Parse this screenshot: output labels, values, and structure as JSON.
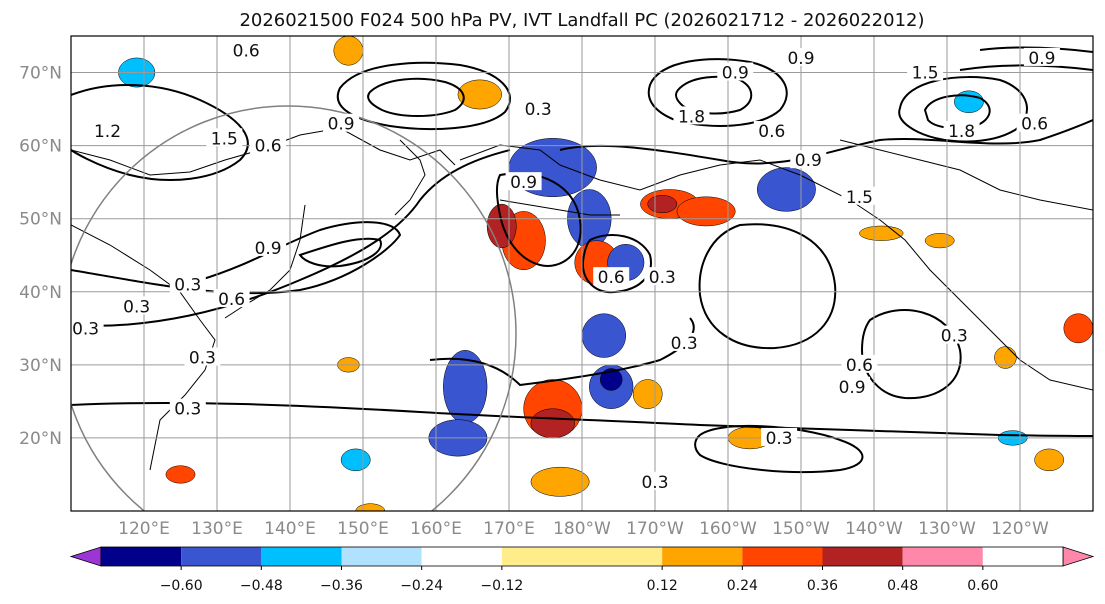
{
  "title": "2026021500 F024 500 hPa PV, IVT Landfall PC (2026021712 - 2026022012)",
  "map": {
    "lon_range": [
      110,
      250
    ],
    "lat_range": [
      10,
      75
    ],
    "lat_ticks": [
      {
        "value": 20,
        "label": "20°N"
      },
      {
        "value": 30,
        "label": "30°N"
      },
      {
        "value": 40,
        "label": "40°N"
      },
      {
        "value": 50,
        "label": "50°N"
      },
      {
        "value": 60,
        "label": "60°N"
      },
      {
        "value": 70,
        "label": "70°N"
      }
    ],
    "lon_ticks": [
      {
        "value": 120,
        "label": "120°E"
      },
      {
        "value": 130,
        "label": "130°E"
      },
      {
        "value": 140,
        "label": "140°E"
      },
      {
        "value": 150,
        "label": "150°E"
      },
      {
        "value": 160,
        "label": "160°E"
      },
      {
        "value": 170,
        "label": "170°E"
      },
      {
        "value": 180,
        "label": "180°W"
      },
      {
        "value": 190,
        "label": "170°W"
      },
      {
        "value": 200,
        "label": "160°W"
      },
      {
        "value": 210,
        "label": "150°W"
      },
      {
        "value": 220,
        "label": "140°W"
      },
      {
        "value": 230,
        "label": "130°W"
      },
      {
        "value": 240,
        "label": "120°W"
      }
    ],
    "gridlines": true
  },
  "colorbar": {
    "levels": [
      -0.72,
      -0.6,
      -0.48,
      -0.36,
      -0.24,
      -0.12,
      0.12,
      0.24,
      0.36,
      0.48,
      0.6,
      0.72
    ],
    "tick_values": [
      -0.6,
      -0.48,
      -0.36,
      -0.24,
      -0.12,
      0.12,
      0.24,
      0.36,
      0.48,
      0.6
    ],
    "tick_labels": [
      "−0.60",
      "−0.48",
      "−0.36",
      "−0.24",
      "−0.12",
      "0.12",
      "0.24",
      "0.36",
      "0.48",
      "0.60"
    ],
    "colors": [
      "#9b35d6",
      "#00008b",
      "#3955d0",
      "#00bfff",
      "#b0e2ff",
      "#ffffff",
      "#ffec8b",
      "#ffa500",
      "#ff4500",
      "#b22222",
      "#ff88aa"
    ],
    "extend": "both"
  },
  "contour_labels": [
    {
      "lon": 115,
      "lat": 62,
      "text": "1.2"
    },
    {
      "lon": 119,
      "lat": 38,
      "text": "0.3"
    },
    {
      "lon": 131,
      "lat": 61,
      "text": "1.5"
    },
    {
      "lon": 137,
      "lat": 60,
      "text": "0.6"
    },
    {
      "lon": 137,
      "lat": 46,
      "text": "0.9"
    },
    {
      "lon": 126,
      "lat": 41,
      "text": "0.3"
    },
    {
      "lon": 132,
      "lat": 39,
      "text": "0.6"
    },
    {
      "lon": 112,
      "lat": 35,
      "text": "0.3"
    },
    {
      "lon": 128,
      "lat": 31,
      "text": "0.3"
    },
    {
      "lon": 126,
      "lat": 24,
      "text": "0.3"
    },
    {
      "lon": 134,
      "lat": 73,
      "text": "0.6"
    },
    {
      "lon": 147,
      "lat": 63,
      "text": "0.9"
    },
    {
      "lon": 174,
      "lat": 65,
      "text": "0.3"
    },
    {
      "lon": 172,
      "lat": 55,
      "text": "0.9"
    },
    {
      "lon": 195,
      "lat": 64,
      "text": "1.8"
    },
    {
      "lon": 201,
      "lat": 70,
      "text": "0.9"
    },
    {
      "lon": 206,
      "lat": 62,
      "text": "0.6"
    },
    {
      "lon": 211,
      "lat": 58,
      "text": "0.9"
    },
    {
      "lon": 232,
      "lat": 62,
      "text": "1.8"
    },
    {
      "lon": 210,
      "lat": 72,
      "text": "0.9"
    },
    {
      "lon": 227,
      "lat": 70,
      "text": "1.5"
    },
    {
      "lon": 218,
      "lat": 53,
      "text": "1.5"
    },
    {
      "lon": 242,
      "lat": 63,
      "text": "0.6"
    },
    {
      "lon": 184,
      "lat": 42,
      "text": "0.6"
    },
    {
      "lon": 191,
      "lat": 42,
      "text": "0.3"
    },
    {
      "lon": 194,
      "lat": 33,
      "text": "0.3"
    },
    {
      "lon": 218,
      "lat": 30,
      "text": "0.6"
    },
    {
      "lon": 217,
      "lat": 27,
      "text": "0.9"
    },
    {
      "lon": 231,
      "lat": 34,
      "text": "0.3"
    },
    {
      "lon": 207,
      "lat": 20,
      "text": "0.3"
    },
    {
      "lon": 190,
      "lat": 14,
      "text": "0.3"
    },
    {
      "lon": 243,
      "lat": 72,
      "text": "0.9"
    }
  ],
  "shaded_areas": [
    {
      "lon": 176,
      "lat": 57,
      "rx": 6,
      "ry": 4,
      "color": "#3955d0"
    },
    {
      "lon": 181,
      "lat": 50,
      "rx": 3,
      "ry": 4,
      "color": "#3955d0"
    },
    {
      "lon": 172,
      "lat": 47,
      "rx": 3,
      "ry": 4,
      "color": "#ff4500"
    },
    {
      "lon": 169,
      "lat": 49,
      "rx": 2,
      "ry": 3,
      "color": "#b22222"
    },
    {
      "lon": 182,
      "lat": 44,
      "rx": 3,
      "ry": 3,
      "color": "#ff4500"
    },
    {
      "lon": 186,
      "lat": 44,
      "rx": 2.5,
      "ry": 2.5,
      "color": "#3955d0"
    },
    {
      "lon": 192,
      "lat": 52,
      "rx": 4,
      "ry": 2,
      "color": "#ff4500"
    },
    {
      "lon": 197,
      "lat": 51,
      "rx": 4,
      "ry": 2,
      "color": "#ff4500"
    },
    {
      "lon": 191,
      "lat": 52,
      "rx": 2,
      "ry": 1.2,
      "color": "#b22222"
    },
    {
      "lon": 208,
      "lat": 54,
      "rx": 4,
      "ry": 3,
      "color": "#3955d0"
    },
    {
      "lon": 183,
      "lat": 34,
      "rx": 3,
      "ry": 3,
      "color": "#3955d0"
    },
    {
      "lon": 184,
      "lat": 27,
      "rx": 3,
      "ry": 3,
      "color": "#3955d0"
    },
    {
      "lon": 184,
      "lat": 28,
      "rx": 1.5,
      "ry": 1.5,
      "color": "#00008b"
    },
    {
      "lon": 176,
      "lat": 24,
      "rx": 4,
      "ry": 4,
      "color": "#ff4500"
    },
    {
      "lon": 176,
      "lat": 22,
      "rx": 3,
      "ry": 2,
      "color": "#b22222"
    },
    {
      "lon": 164,
      "lat": 27,
      "rx": 3,
      "ry": 5,
      "color": "#3955d0"
    },
    {
      "lon": 163,
      "lat": 20,
      "rx": 4,
      "ry": 2.5,
      "color": "#3955d0"
    },
    {
      "lon": 177,
      "lat": 14,
      "rx": 4,
      "ry": 2,
      "color": "#ffa500"
    },
    {
      "lon": 189,
      "lat": 26,
      "rx": 2,
      "ry": 2,
      "color": "#ffa500"
    },
    {
      "lon": 203,
      "lat": 20,
      "rx": 3,
      "ry": 1.5,
      "color": "#ffa500"
    },
    {
      "lon": 148,
      "lat": 73,
      "rx": 2,
      "ry": 2,
      "color": "#ffa500"
    },
    {
      "lon": 166,
      "lat": 67,
      "rx": 3,
      "ry": 2,
      "color": "#ffa500"
    },
    {
      "lon": 119,
      "lat": 70,
      "rx": 2.5,
      "ry": 2,
      "color": "#00bfff"
    },
    {
      "lon": 233,
      "lat": 66,
      "rx": 2,
      "ry": 1.5,
      "color": "#00bfff"
    },
    {
      "lon": 238,
      "lat": 31,
      "rx": 1.5,
      "ry": 1.5,
      "color": "#ffa500"
    },
    {
      "lon": 248,
      "lat": 35,
      "rx": 2,
      "ry": 2,
      "color": "#ff4500"
    },
    {
      "lon": 244,
      "lat": 17,
      "rx": 2,
      "ry": 1.5,
      "color": "#ffa500"
    },
    {
      "lon": 148,
      "lat": 30,
      "rx": 1.5,
      "ry": 1,
      "color": "#ffa500"
    },
    {
      "lon": 149,
      "lat": 17,
      "rx": 2,
      "ry": 1.5,
      "color": "#00bfff"
    },
    {
      "lon": 151,
      "lat": 10,
      "rx": 2,
      "ry": 1,
      "color": "#ffa500"
    },
    {
      "lon": 125,
      "lat": 15,
      "rx": 2,
      "ry": 1.2,
      "color": "#ff4500"
    },
    {
      "lon": 239,
      "lat": 20,
      "rx": 2,
      "ry": 1,
      "color": "#00bfff"
    },
    {
      "lon": 221,
      "lat": 48,
      "rx": 3,
      "ry": 1,
      "color": "#ffa500"
    },
    {
      "lon": 229,
      "lat": 47,
      "rx": 2,
      "ry": 1,
      "color": "#ffa500"
    }
  ]
}
